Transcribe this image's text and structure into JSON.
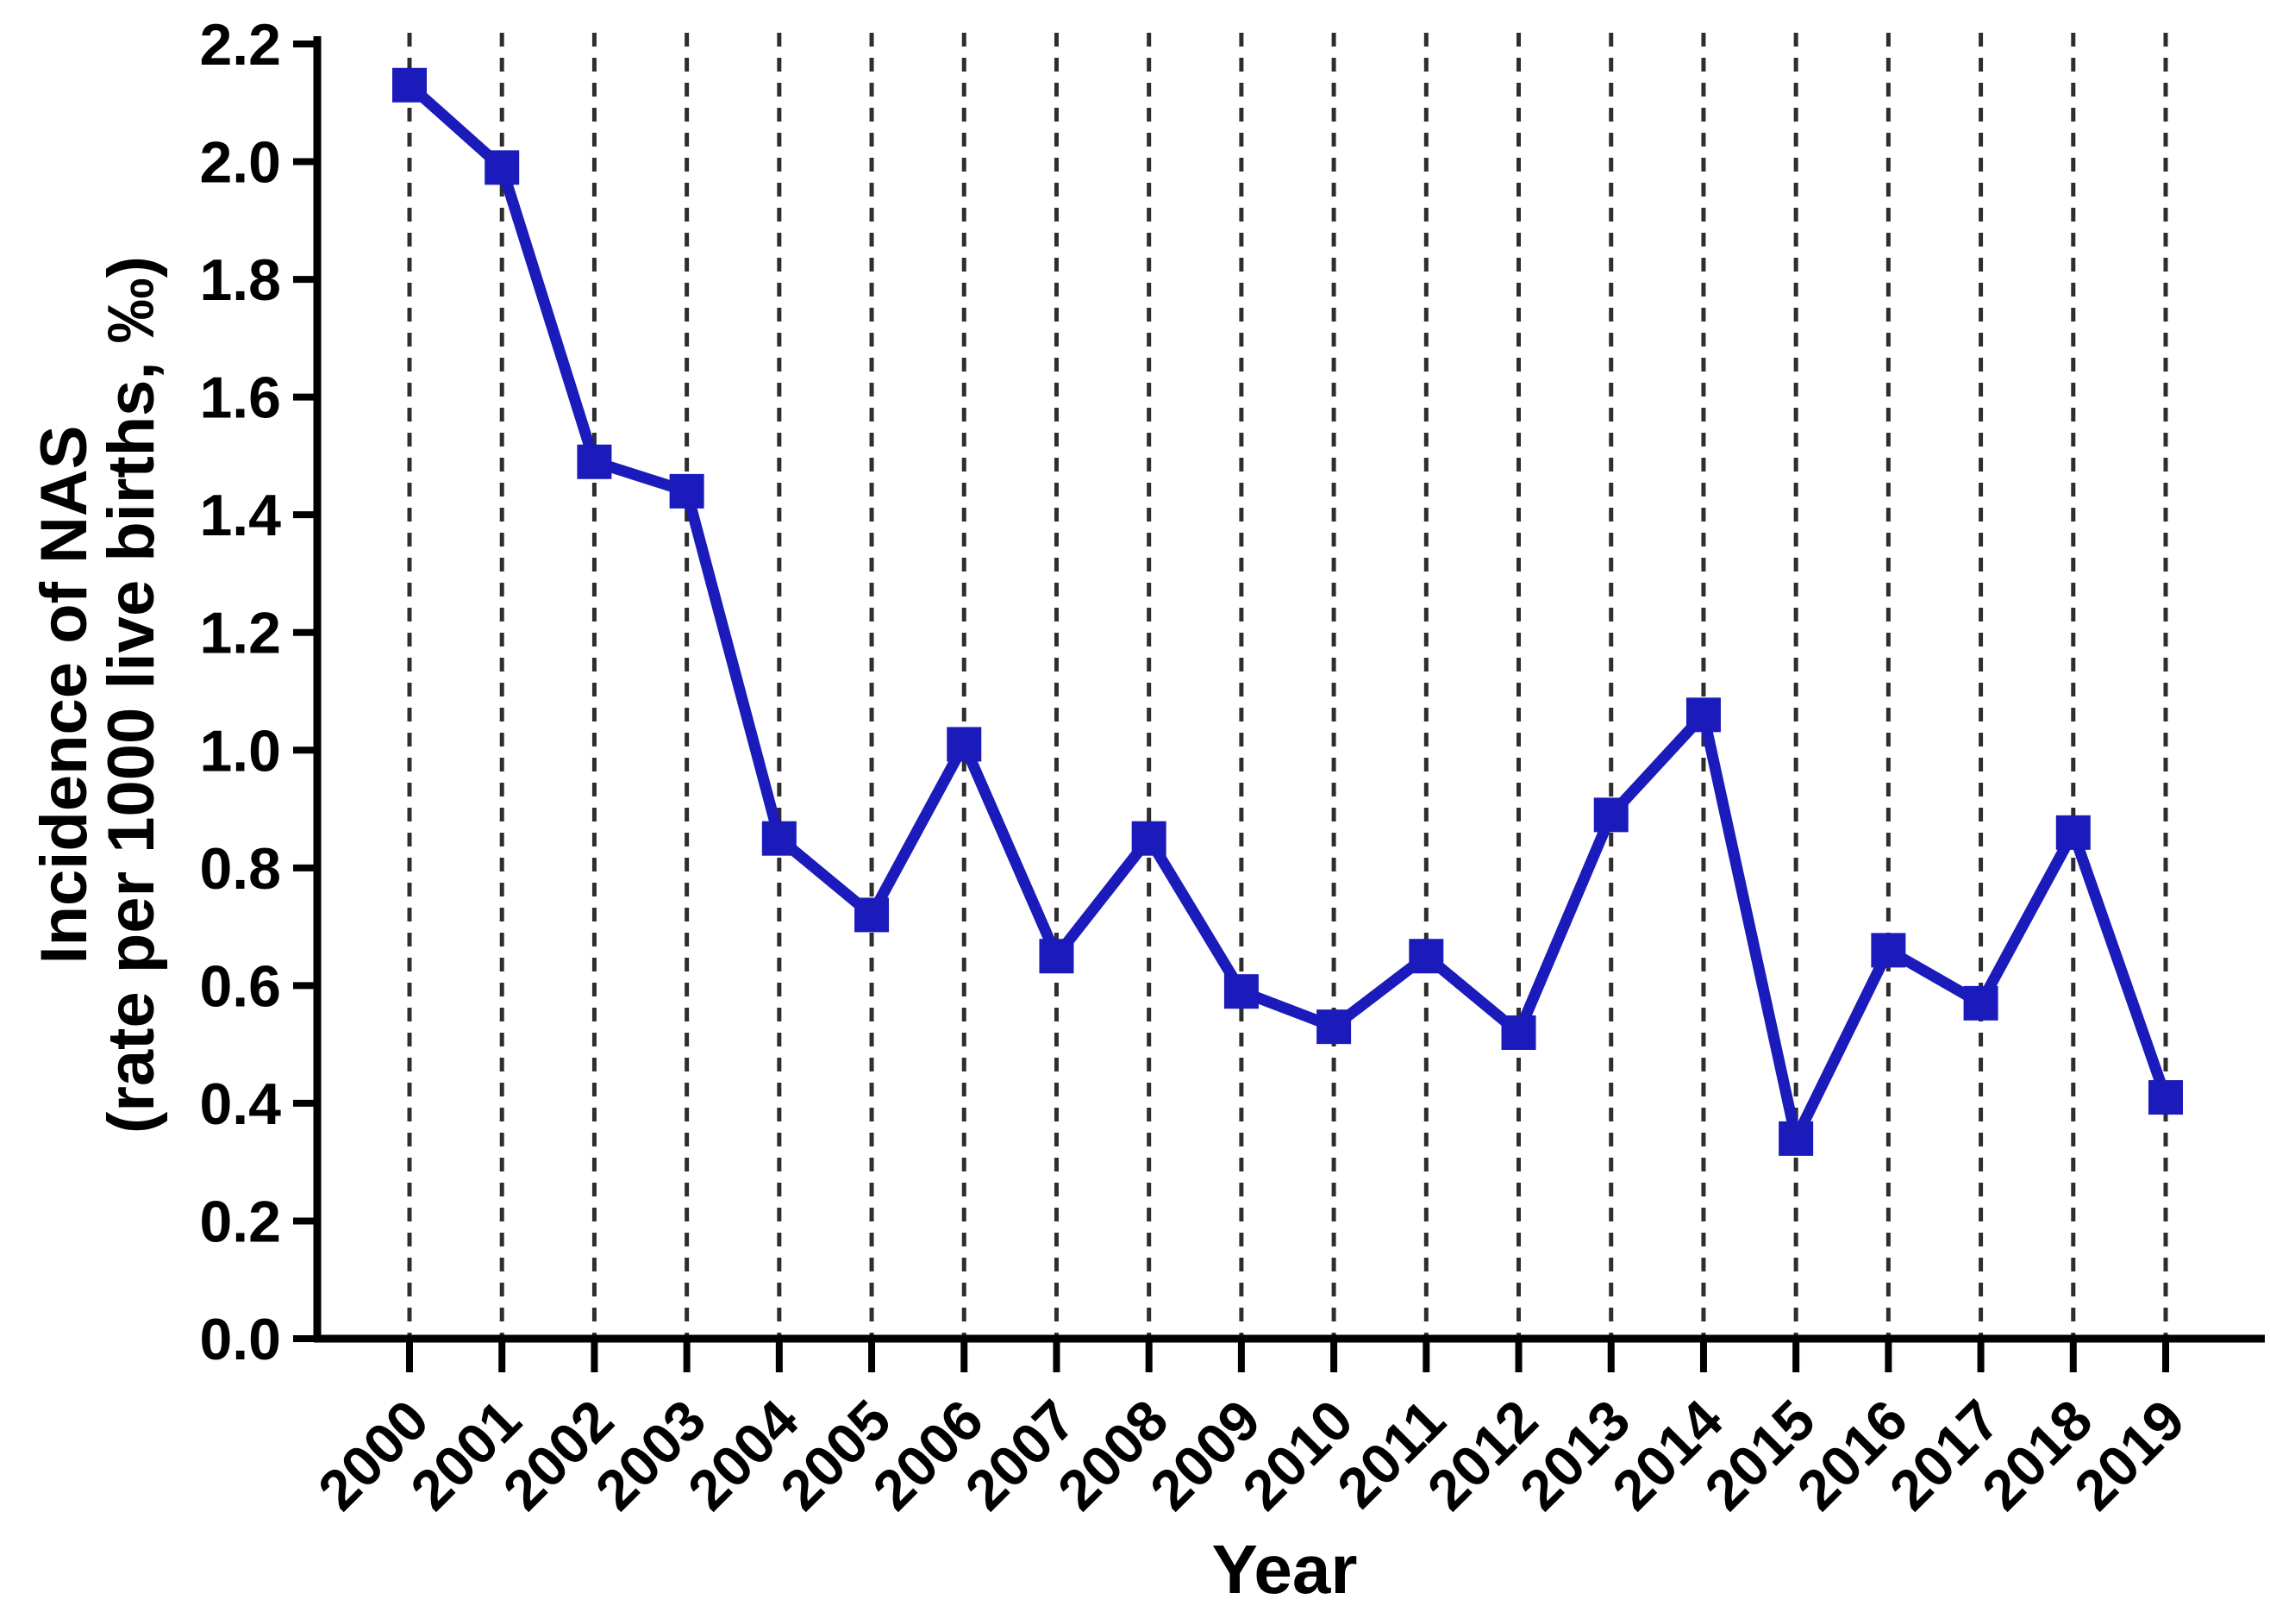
{
  "chart_data": {
    "type": "line",
    "title": "",
    "xlabel": "Year",
    "ylabel_line1": "Incidence of NAS",
    "ylabel_line2": "(rate per 1000 live births, ‰)",
    "x": [
      2000,
      2001,
      2002,
      2003,
      2004,
      2005,
      2006,
      2007,
      2008,
      2009,
      2010,
      2011,
      2012,
      2013,
      2014,
      2015,
      2016,
      2017,
      2018,
      2019
    ],
    "xtick_labels": [
      "2000",
      "2001",
      "2002",
      "2003",
      "2004",
      "2005",
      "2006",
      "2007",
      "2008",
      "2009",
      "2010",
      "2011",
      "2012",
      "2013",
      "2014",
      "2015",
      "2016",
      "2017",
      "2018",
      "2019"
    ],
    "series": [
      {
        "name": "Incidence of NAS (rate per 1000 live births)",
        "values": [
          2.13,
          1.99,
          1.49,
          1.44,
          0.85,
          0.72,
          1.01,
          0.65,
          0.85,
          0.59,
          0.53,
          0.65,
          0.52,
          0.89,
          1.06,
          0.34,
          0.66,
          0.57,
          0.86,
          0.41
        ]
      }
    ],
    "ylim": [
      0.0,
      2.2
    ],
    "ytick_step": 0.2,
    "ytick_labels": [
      "0.0",
      "0.2",
      "0.4",
      "0.6",
      "0.8",
      "1.0",
      "1.2",
      "1.4",
      "1.6",
      "1.8",
      "2.0",
      "2.2"
    ],
    "grid": "vertical dashed gridlines at each year",
    "legend_position": "none",
    "marker": "filled-square",
    "line_color": "#1b1bbb",
    "marker_color": "#1b1bbb",
    "axis_color": "#000000",
    "gridline_color": "#2e2e2e",
    "background_color": "#ffffff"
  }
}
